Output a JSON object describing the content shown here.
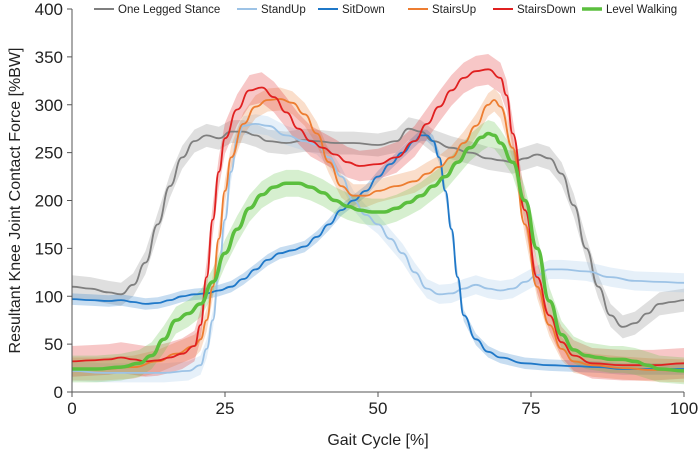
{
  "chart_data": {
    "type": "line",
    "title": "",
    "xlabel": "Gait Cycle [%]",
    "ylabel": "Resultant Knee Joint Contact Force [%BW]",
    "xlim": [
      0,
      100
    ],
    "ylim": [
      0,
      400
    ],
    "xticks": [
      0,
      25,
      50,
      75,
      100
    ],
    "yticks": [
      0,
      50,
      100,
      150,
      200,
      250,
      300,
      350,
      400
    ],
    "grid": false,
    "legend_position": "top",
    "series": [
      {
        "name": "One Legged Stance",
        "color": "#7f7f7f",
        "band": 12,
        "points": [
          [
            0,
            110
          ],
          [
            3,
            108
          ],
          [
            6,
            104
          ],
          [
            8,
            102
          ],
          [
            10,
            112
          ],
          [
            12,
            135
          ],
          [
            14,
            175
          ],
          [
            16,
            215
          ],
          [
            18,
            245
          ],
          [
            20,
            262
          ],
          [
            22,
            268
          ],
          [
            24,
            265
          ],
          [
            26,
            272
          ],
          [
            28,
            272
          ],
          [
            30,
            268
          ],
          [
            32,
            262
          ],
          [
            35,
            260
          ],
          [
            38,
            263
          ],
          [
            40,
            262
          ],
          [
            43,
            260
          ],
          [
            46,
            260
          ],
          [
            50,
            258
          ],
          [
            53,
            262
          ],
          [
            55,
            275
          ],
          [
            57,
            272
          ],
          [
            59,
            262
          ],
          [
            62,
            255
          ],
          [
            65,
            250
          ],
          [
            68,
            244
          ],
          [
            70,
            242
          ],
          [
            72,
            240
          ],
          [
            74,
            244
          ],
          [
            76,
            248
          ],
          [
            78,
            244
          ],
          [
            80,
            228
          ],
          [
            82,
            195
          ],
          [
            84,
            150
          ],
          [
            86,
            110
          ],
          [
            88,
            80
          ],
          [
            90,
            68
          ],
          [
            92,
            72
          ],
          [
            94,
            82
          ],
          [
            96,
            92
          ],
          [
            98,
            94
          ],
          [
            100,
            96
          ]
        ]
      },
      {
        "name": "StandUp",
        "color": "#9dc3e6",
        "band": 10,
        "points": [
          [
            0,
            22
          ],
          [
            5,
            20
          ],
          [
            10,
            20
          ],
          [
            15,
            20
          ],
          [
            19,
            22
          ],
          [
            21,
            28
          ],
          [
            22,
            45
          ],
          [
            23,
            75
          ],
          [
            24,
            125
          ],
          [
            25,
            180
          ],
          [
            26,
            230
          ],
          [
            27,
            265
          ],
          [
            28,
            278
          ],
          [
            30,
            280
          ],
          [
            32,
            278
          ],
          [
            35,
            268
          ],
          [
            38,
            262
          ],
          [
            40,
            258
          ],
          [
            42,
            245
          ],
          [
            44,
            225
          ],
          [
            46,
            200
          ],
          [
            48,
            185
          ],
          [
            50,
            175
          ],
          [
            52,
            160
          ],
          [
            54,
            145
          ],
          [
            56,
            125
          ],
          [
            58,
            108
          ],
          [
            60,
            102
          ],
          [
            62,
            103
          ],
          [
            64,
            108
          ],
          [
            66,
            112
          ],
          [
            68,
            108
          ],
          [
            70,
            106
          ],
          [
            72,
            108
          ],
          [
            74,
            115
          ],
          [
            76,
            122
          ],
          [
            78,
            128
          ],
          [
            80,
            128
          ],
          [
            84,
            126
          ],
          [
            88,
            120
          ],
          [
            92,
            116
          ],
          [
            96,
            115
          ],
          [
            100,
            114
          ]
        ]
      },
      {
        "name": "SitDown",
        "color": "#1f78c8",
        "band": 6,
        "points": [
          [
            0,
            97
          ],
          [
            3,
            96
          ],
          [
            6,
            95
          ],
          [
            8,
            96
          ],
          [
            10,
            94
          ],
          [
            12,
            92
          ],
          [
            14,
            93
          ],
          [
            16,
            96
          ],
          [
            18,
            100
          ],
          [
            20,
            102
          ],
          [
            22,
            103
          ],
          [
            24,
            106
          ],
          [
            26,
            110
          ],
          [
            28,
            118
          ],
          [
            30,
            128
          ],
          [
            32,
            138
          ],
          [
            34,
            145
          ],
          [
            36,
            148
          ],
          [
            38,
            152
          ],
          [
            40,
            162
          ],
          [
            42,
            175
          ],
          [
            44,
            190
          ],
          [
            46,
            200
          ],
          [
            48,
            210
          ],
          [
            50,
            225
          ],
          [
            52,
            238
          ],
          [
            54,
            250
          ],
          [
            56,
            262
          ],
          [
            57,
            268
          ],
          [
            58,
            268
          ],
          [
            59,
            262
          ],
          [
            60,
            245
          ],
          [
            61,
            210
          ],
          [
            62,
            170
          ],
          [
            63,
            120
          ],
          [
            64,
            80
          ],
          [
            66,
            55
          ],
          [
            68,
            42
          ],
          [
            70,
            36
          ],
          [
            74,
            30
          ],
          [
            78,
            28
          ],
          [
            82,
            27
          ],
          [
            86,
            26
          ],
          [
            90,
            24
          ],
          [
            95,
            24
          ],
          [
            100,
            24
          ]
        ]
      },
      {
        "name": "StairsUp",
        "color": "#ed7d31",
        "band": 12,
        "points": [
          [
            0,
            24
          ],
          [
            5,
            24
          ],
          [
            10,
            26
          ],
          [
            14,
            32
          ],
          [
            17,
            40
          ],
          [
            20,
            48
          ],
          [
            21,
            55
          ],
          [
            22,
            75
          ],
          [
            23,
            110
          ],
          [
            24,
            160
          ],
          [
            25,
            210
          ],
          [
            26,
            245
          ],
          [
            28,
            280
          ],
          [
            30,
            298
          ],
          [
            32,
            305
          ],
          [
            34,
            306
          ],
          [
            36,
            302
          ],
          [
            38,
            290
          ],
          [
            40,
            270
          ],
          [
            42,
            240
          ],
          [
            44,
            215
          ],
          [
            46,
            205
          ],
          [
            48,
            205
          ],
          [
            50,
            210
          ],
          [
            53,
            215
          ],
          [
            56,
            220
          ],
          [
            58,
            228
          ],
          [
            60,
            235
          ],
          [
            62,
            245
          ],
          [
            64,
            260
          ],
          [
            66,
            278
          ],
          [
            68,
            300
          ],
          [
            69,
            305
          ],
          [
            70,
            298
          ],
          [
            72,
            255
          ],
          [
            74,
            175
          ],
          [
            76,
            110
          ],
          [
            78,
            70
          ],
          [
            80,
            45
          ],
          [
            82,
            32
          ],
          [
            85,
            28
          ],
          [
            90,
            25
          ],
          [
            95,
            23
          ],
          [
            100,
            22
          ]
        ]
      },
      {
        "name": "StairsDown",
        "color": "#e02020",
        "band": 16,
        "points": [
          [
            0,
            32
          ],
          [
            3,
            33
          ],
          [
            6,
            34
          ],
          [
            8,
            36
          ],
          [
            10,
            34
          ],
          [
            12,
            32
          ],
          [
            14,
            33
          ],
          [
            16,
            36
          ],
          [
            18,
            40
          ],
          [
            20,
            48
          ],
          [
            21,
            70
          ],
          [
            22,
            120
          ],
          [
            23,
            180
          ],
          [
            24,
            230
          ],
          [
            25,
            265
          ],
          [
            27,
            295
          ],
          [
            29,
            315
          ],
          [
            31,
            318
          ],
          [
            33,
            308
          ],
          [
            35,
            292
          ],
          [
            37,
            275
          ],
          [
            39,
            262
          ],
          [
            41,
            255
          ],
          [
            43,
            248
          ],
          [
            45,
            240
          ],
          [
            47,
            236
          ],
          [
            50,
            238
          ],
          [
            53,
            245
          ],
          [
            56,
            262
          ],
          [
            58,
            280
          ],
          [
            60,
            298
          ],
          [
            62,
            315
          ],
          [
            64,
            328
          ],
          [
            66,
            335
          ],
          [
            68,
            337
          ],
          [
            70,
            328
          ],
          [
            71,
            310
          ],
          [
            72,
            270
          ],
          [
            74,
            190
          ],
          [
            76,
            120
          ],
          [
            78,
            80
          ],
          [
            80,
            52
          ],
          [
            82,
            38
          ],
          [
            85,
            30
          ],
          [
            90,
            28
          ],
          [
            95,
            28
          ],
          [
            100,
            30
          ]
        ]
      },
      {
        "name": "Level Walking",
        "color": "#5bbf3e",
        "band": 14,
        "points": [
          [
            0,
            24
          ],
          [
            4,
            24
          ],
          [
            8,
            26
          ],
          [
            11,
            30
          ],
          [
            13,
            38
          ],
          [
            15,
            55
          ],
          [
            17,
            75
          ],
          [
            19,
            82
          ],
          [
            21,
            92
          ],
          [
            23,
            115
          ],
          [
            25,
            145
          ],
          [
            27,
            170
          ],
          [
            29,
            192
          ],
          [
            31,
            206
          ],
          [
            33,
            214
          ],
          [
            35,
            218
          ],
          [
            37,
            218
          ],
          [
            39,
            214
          ],
          [
            41,
            208
          ],
          [
            43,
            200
          ],
          [
            45,
            194
          ],
          [
            47,
            190
          ],
          [
            49,
            188
          ],
          [
            51,
            188
          ],
          [
            53,
            192
          ],
          [
            55,
            198
          ],
          [
            57,
            205
          ],
          [
            59,
            215
          ],
          [
            61,
            225
          ],
          [
            63,
            240
          ],
          [
            65,
            255
          ],
          [
            67,
            266
          ],
          [
            68,
            270
          ],
          [
            69,
            268
          ],
          [
            70,
            260
          ],
          [
            72,
            240
          ],
          [
            74,
            200
          ],
          [
            76,
            150
          ],
          [
            78,
            95
          ],
          [
            80,
            60
          ],
          [
            82,
            44
          ],
          [
            84,
            38
          ],
          [
            86,
            36
          ],
          [
            88,
            34
          ],
          [
            90,
            34
          ],
          [
            92,
            32
          ],
          [
            94,
            28
          ],
          [
            96,
            24
          ],
          [
            100,
            22
          ]
        ]
      }
    ]
  }
}
